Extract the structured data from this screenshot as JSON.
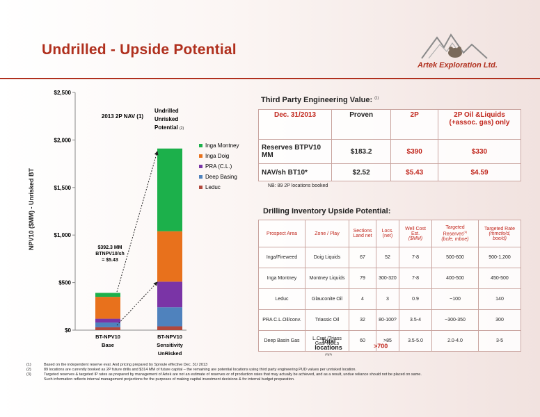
{
  "title": "Undrilled - Upside Potential",
  "company": "Artek Exploration Ltd.",
  "colors": {
    "inga_montney": "#1cb04b",
    "inga_doig": "#e8711c",
    "pra": "#7a34a6",
    "deep_basing": "#4f82bd",
    "leduc": "#b1483c",
    "title": "#b0301e"
  },
  "chart_data": {
    "type": "bar",
    "ylabel": "NPV10 ($MM) - Unrisked BT",
    "ylim": [
      0,
      2500
    ],
    "yticks": [
      "$0",
      "$500",
      "$1,000",
      "$1,500",
      "$2,000",
      "$2,500"
    ],
    "ytick_values": [
      0,
      500,
      1000,
      1500,
      2000,
      2500
    ],
    "categories": [
      {
        "line1": "BT-NPV10",
        "line2": "Base",
        "line3": ""
      },
      {
        "line1": "BT-NPV10",
        "line2": "Sensitivity",
        "line3": "UnRisked"
      }
    ],
    "series": [
      {
        "name": "Leduc",
        "values": [
          30,
          40
        ]
      },
      {
        "name": "Deep Basing",
        "values": [
          50,
          200
        ]
      },
      {
        "name": "PRA (C.L.)",
        "values": [
          40,
          270
        ]
      },
      {
        "name": "Inga Doig",
        "values": [
          230,
          530
        ]
      },
      {
        "name": "Inga Montney",
        "values": [
          42,
          870
        ]
      }
    ],
    "legend_order": [
      "Inga Montney",
      "Inga Doig",
      "PRA (C.L.)",
      "Deep Basing",
      "Leduc"
    ],
    "legend": "right",
    "grid": false,
    "annotations": {
      "nav_label": "2013 2P NAV (1)",
      "undrilled_l1": "Undrilled",
      "undrilled_l2": "Unrisked",
      "undrilled_l3": "Potential",
      "undrilled_ref": "(2)",
      "callout_l1": "$392.3 MM",
      "callout_l2": "BTNPV10/sh",
      "callout_l3": "= $5.43"
    }
  },
  "third_party": {
    "heading": "Third Party Engineering Value:",
    "heading_ref": "(1)",
    "header": [
      "Dec. 31/2013",
      "Proven",
      "2P",
      "2P Oil &Liquids (+assoc. gas) only"
    ],
    "rows": [
      {
        "label": "Reserves BTPV10 MM",
        "values": [
          "$183.2",
          "$390",
          "$330"
        ]
      },
      {
        "label": "NAV/sh BT10*",
        "values": [
          "$2.52",
          "$5.43",
          "$4.59"
        ]
      }
    ],
    "note": "NB: 89 2P locations booked"
  },
  "drilling": {
    "heading": "Drilling Inventory Upside Potential:",
    "header": {
      "area": "Prospect Area",
      "zone": "Zone / Play",
      "sections_l1": "Sections",
      "sections_l2": "Land net",
      "locs_l1": "Locs.",
      "locs_l2": "(net)",
      "cost_l1": "Well Cost",
      "cost_l2": "Est.",
      "cost_l3": "($MM)",
      "reserves_l1": "Targeted",
      "reserves_l2": "Reserves",
      "reserves_ref": "(3)",
      "reserves_l3": "(bcfe, mboe)",
      "rate_l1": "Targeted Rate",
      "rate_l2": "(mmcfe/d,",
      "rate_l3": "boe/d)"
    },
    "rows": [
      {
        "area": "Inga/Fireweed",
        "zone": "Doig Liquids",
        "sections": "67",
        "locs": "52",
        "cost": "7-8",
        "reserves": "500-600",
        "rate": "900-1,200"
      },
      {
        "area": "Inga Montney",
        "zone": "Montney Liquids",
        "sections": "79",
        "locs": "300-320",
        "cost": "7-8",
        "reserves": "400-500",
        "rate": "450-500"
      },
      {
        "area": "Leduc",
        "zone": "Glauconite Oil",
        "sections": "4",
        "locs": "3",
        "cost": "0.9",
        "reserves": "~100",
        "rate": "140"
      },
      {
        "area": "PRA C.L.Oil/conv.",
        "zone": "Triassic Oil",
        "sections": "32",
        "locs": "80-100?",
        "cost": "3.5-4",
        "reserves": "~300-350",
        "rate": "300"
      },
      {
        "area": "Deep Basin Gas",
        "zone": "L.Cret./Triass Gas/ NGLs",
        "sections": "60",
        "locs": ">85",
        "cost": "3.5-5.0",
        "reserves": "2.0-4.0",
        "rate": "3-5"
      }
    ],
    "total_l1": "Total",
    "total_l2": "locations",
    "total_ref": "(2)(3)",
    "total_value": ">700"
  },
  "footnotes": [
    {
      "n": "(1)",
      "text": "Based on the independent reserve eval. And pricing prepared by Sproule effective Dec. 31/ 2013"
    },
    {
      "n": "(2)",
      "text": "89 locations are currently booked as 2P future drills and $314 MM of future capital – the remaining are potential locations using third party engineering PUD values per unrisked location."
    },
    {
      "n": "(3)",
      "text": "Targeted reserves & targeted IP rates as prepared by management of Artek are not an estimate of reserves or of production rates that may actually be achieved, and as a result, undue reliance should not be placed on same."
    },
    {
      "n": "",
      "text": "Such information reflects internal management projections for the purposes of making capital investment decisions & for internal budget preparation."
    }
  ]
}
